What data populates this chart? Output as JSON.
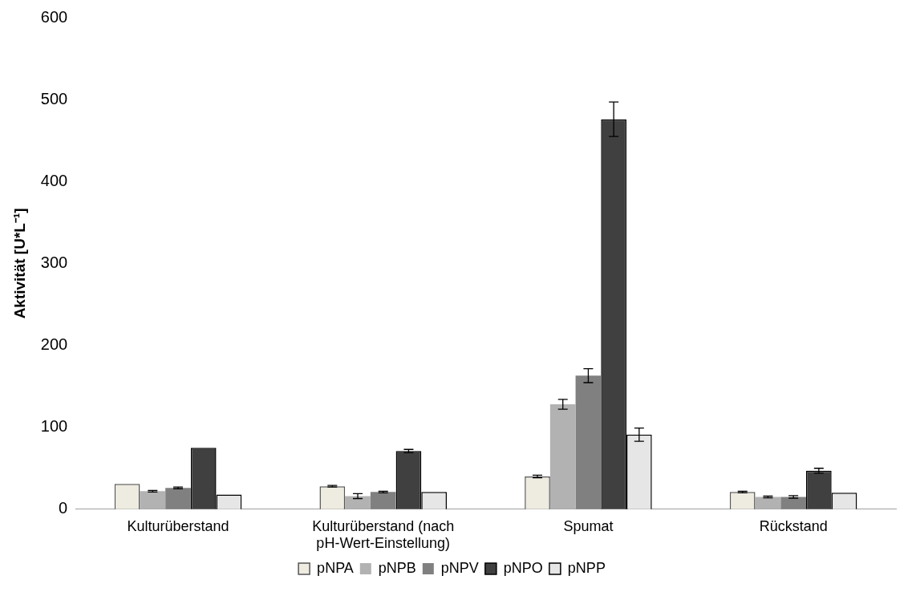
{
  "chart_data": {
    "type": "bar",
    "ylabel": "Aktivität [U*L⁻¹]",
    "categories": [
      "Kulturüberstand",
      "Kulturüberstand (nach pH-Wert-Einstellung)",
      "Spumat",
      "Rückstand"
    ],
    "series": [
      {
        "name": "pNPA",
        "color": "#eeebe0",
        "values": [
          31,
          28,
          40,
          21
        ],
        "errors": [
          null,
          1,
          1.5,
          1
        ]
      },
      {
        "name": "pNPB",
        "color": "#b2b2b2",
        "values": [
          22,
          16,
          128,
          15
        ],
        "errors": [
          1,
          3,
          6,
          1
        ]
      },
      {
        "name": "pNPV",
        "color": "#808080",
        "values": [
          26,
          21,
          163,
          15
        ],
        "errors": [
          1,
          1,
          8.5,
          1.5
        ]
      },
      {
        "name": "pNPO",
        "color": "#404040",
        "values": [
          75,
          71,
          476,
          47
        ],
        "errors": [
          null,
          2,
          21,
          3
        ]
      },
      {
        "name": "pNPP",
        "color": "#e6e6e6",
        "values": [
          18,
          21,
          91,
          20
        ],
        "errors": [
          null,
          null,
          8,
          null
        ]
      }
    ],
    "ylim": [
      0,
      600
    ],
    "yticks": [
      0,
      100,
      200,
      300,
      400,
      500,
      600
    ],
    "grid": false,
    "legend": "bottom"
  }
}
